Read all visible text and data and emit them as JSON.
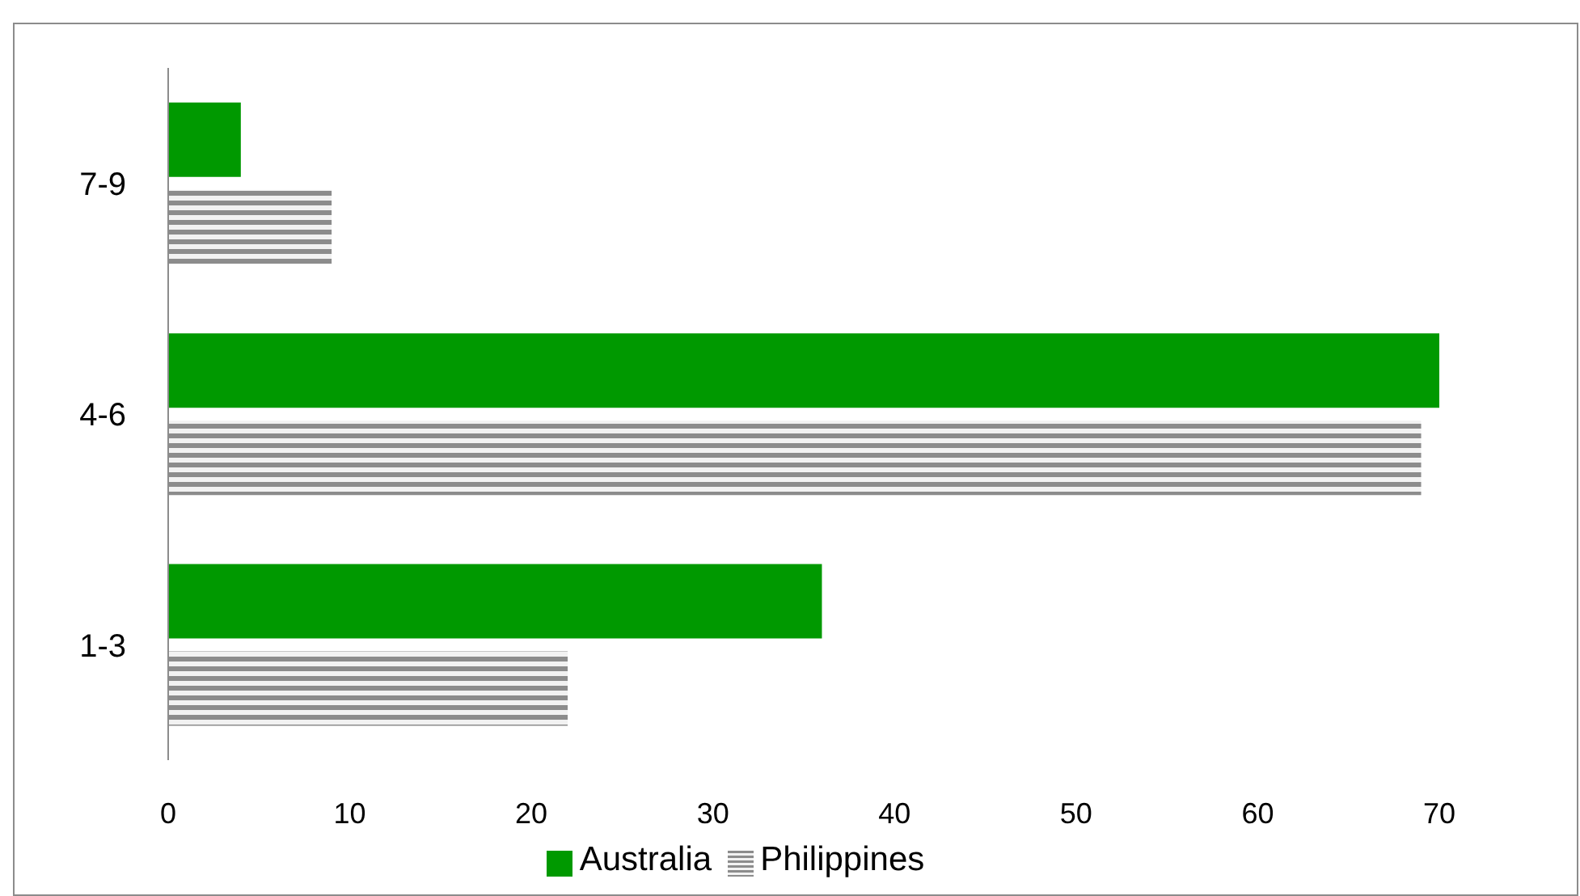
{
  "chart_data": {
    "type": "bar",
    "orientation": "horizontal",
    "categories": [
      "7-9",
      "4-6",
      "1-3"
    ],
    "series": [
      {
        "name": "Australia",
        "color": "#009900",
        "values": [
          4,
          70,
          36
        ]
      },
      {
        "name": "Philippines",
        "color": "#8c8c8c",
        "values": [
          9,
          69,
          22
        ]
      }
    ],
    "xlim": [
      0,
      70
    ],
    "xticks": [
      0,
      10,
      20,
      30,
      40,
      50,
      60,
      70
    ],
    "grid": false,
    "legend": "bottom"
  }
}
